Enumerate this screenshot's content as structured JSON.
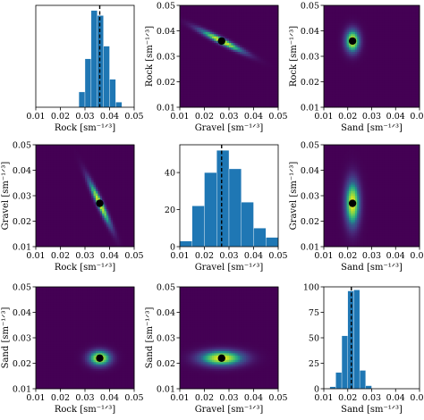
{
  "figure": {
    "colormap": "viridis",
    "bar_color": "#1f77b4",
    "mean_marker_color": "#000000",
    "mean_line_style": "dashed"
  },
  "chart_data": [
    {
      "id": "rock-hist",
      "type": "bar",
      "xlabel": "Rock [sm⁻¹ᐟ³]",
      "ylabel": "",
      "xlim": [
        0.01,
        0.05
      ],
      "ylim": [
        0,
        80
      ],
      "xticks": [
        "0.01",
        "0.02",
        "0.03",
        "0.04",
        "0.05"
      ],
      "yticks": [],
      "bin_edges": [
        0.0275,
        0.03,
        0.0325,
        0.035,
        0.0375,
        0.04,
        0.0425,
        0.045
      ],
      "values": [
        12,
        38,
        76,
        72,
        48,
        22,
        4
      ],
      "mean_line": 0.036
    },
    {
      "id": "rock-vs-gravel",
      "type": "heatmap",
      "xlabel": "Gravel [sm⁻¹ᐟ³]",
      "ylabel": "Rock [sm⁻¹ᐟ³]",
      "xlim": [
        0.01,
        0.05
      ],
      "ylim": [
        0.01,
        0.05
      ],
      "xticks": [
        "0.01",
        "0.02",
        "0.03",
        "0.04",
        "0.05"
      ],
      "yticks": [
        "0.01",
        "0.02",
        "0.03",
        "0.04",
        "0.05"
      ],
      "center": [
        0.027,
        0.036
      ],
      "sigma": [
        0.006,
        0.003
      ],
      "rho": -0.95,
      "marker": [
        0.027,
        0.036
      ]
    },
    {
      "id": "rock-vs-sand",
      "type": "heatmap",
      "xlabel": "Sand [sm⁻¹ᐟ³]",
      "ylabel": "Rock [sm⁻¹ᐟ³]",
      "xlim": [
        0.01,
        0.05
      ],
      "ylim": [
        0.01,
        0.05
      ],
      "xticks": [
        "0.01",
        "0.02",
        "0.03",
        "0.04",
        "0.05"
      ],
      "yticks": [
        "0.01",
        "0.02",
        "0.03",
        "0.04",
        "0.05"
      ],
      "center": [
        0.022,
        0.036
      ],
      "sigma": [
        0.002,
        0.003
      ],
      "rho": 0.0,
      "marker": [
        0.022,
        0.036
      ]
    },
    {
      "id": "gravel-vs-rock",
      "type": "heatmap",
      "xlabel": "Rock [sm⁻¹ᐟ³]",
      "ylabel": "Gravel [sm⁻¹ᐟ³]",
      "xlim": [
        0.01,
        0.05
      ],
      "ylim": [
        0.01,
        0.05
      ],
      "xticks": [
        "0.01",
        "0.02",
        "0.03",
        "0.04",
        "0.05"
      ],
      "yticks": [
        "0.01",
        "0.02",
        "0.03",
        "0.04",
        "0.05"
      ],
      "center": [
        0.036,
        0.027
      ],
      "sigma": [
        0.003,
        0.006
      ],
      "rho": -0.95,
      "marker": [
        0.036,
        0.027
      ]
    },
    {
      "id": "gravel-hist",
      "type": "bar",
      "xlabel": "Gravel [sm⁻¹ᐟ³]",
      "ylabel": "",
      "xlim": [
        0.01,
        0.05
      ],
      "ylim": [
        0,
        55
      ],
      "xticks": [
        "0.01",
        "0.02",
        "0.03",
        "0.04",
        "0.05"
      ],
      "yticks": [
        "0",
        "20",
        "40"
      ],
      "bin_edges": [
        0.01,
        0.015,
        0.02,
        0.025,
        0.03,
        0.035,
        0.04,
        0.045,
        0.05
      ],
      "values": [
        3,
        22,
        40,
        52,
        42,
        24,
        10,
        5
      ],
      "mean_line": 0.027
    },
    {
      "id": "gravel-vs-sand",
      "type": "heatmap",
      "xlabel": "Sand [sm⁻¹ᐟ³]",
      "ylabel": "Gravel [sm⁻¹ᐟ³]",
      "xlim": [
        0.01,
        0.05
      ],
      "ylim": [
        0.01,
        0.05
      ],
      "xticks": [
        "0.01",
        "0.02",
        "0.03",
        "0.04",
        "0.05"
      ],
      "yticks": [
        "0.01",
        "0.02",
        "0.03",
        "0.04",
        "0.05"
      ],
      "center": [
        0.022,
        0.027
      ],
      "sigma": [
        0.002,
        0.006
      ],
      "rho": 0.0,
      "marker": [
        0.022,
        0.027
      ]
    },
    {
      "id": "sand-vs-rock",
      "type": "heatmap",
      "xlabel": "Rock [sm⁻¹ᐟ³]",
      "ylabel": "Sand [sm⁻¹ᐟ³]",
      "xlim": [
        0.01,
        0.05
      ],
      "ylim": [
        0.01,
        0.05
      ],
      "xticks": [
        "0.01",
        "0.02",
        "0.03",
        "0.04",
        "0.05"
      ],
      "yticks": [
        "0.01",
        "0.02",
        "0.03",
        "0.04",
        "0.05"
      ],
      "center": [
        0.036,
        0.022
      ],
      "sigma": [
        0.003,
        0.002
      ],
      "rho": 0.0,
      "marker": [
        0.036,
        0.022
      ]
    },
    {
      "id": "sand-vs-gravel",
      "type": "heatmap",
      "xlabel": "Gravel [sm⁻¹ᐟ³]",
      "ylabel": "Sand [sm⁻¹ᐟ³]",
      "xlim": [
        0.01,
        0.05
      ],
      "ylim": [
        0.01,
        0.05
      ],
      "xticks": [
        "0.01",
        "0.02",
        "0.03",
        "0.04",
        "0.05"
      ],
      "yticks": [
        "0.01",
        "0.02",
        "0.03",
        "0.04",
        "0.05"
      ],
      "center": [
        0.027,
        0.022
      ],
      "sigma": [
        0.006,
        0.002
      ],
      "rho": 0.0,
      "marker": [
        0.027,
        0.022
      ]
    },
    {
      "id": "sand-hist",
      "type": "bar",
      "xlabel": "Sand [sm⁻¹ᐟ³]",
      "ylabel": "",
      "xlim": [
        0.01,
        0.05
      ],
      "ylim": [
        0,
        100
      ],
      "xticks": [
        "0.01",
        "0.02",
        "0.03",
        "0.04",
        "0.05"
      ],
      "yticks": [
        "0",
        "25",
        "50",
        "75",
        "100"
      ],
      "bin_edges": [
        0.0125,
        0.015,
        0.0175,
        0.02,
        0.0225,
        0.025,
        0.0275,
        0.03
      ],
      "values": [
        2,
        16,
        52,
        96,
        97,
        18,
        3
      ],
      "mean_line": 0.0215
    }
  ]
}
